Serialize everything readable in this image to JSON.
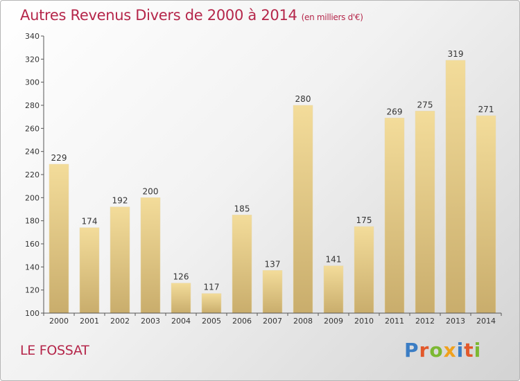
{
  "header": {
    "title": "Autres Revenus Divers de 2000 à 2014",
    "subtitle": "(en milliers d'€)"
  },
  "footer": {
    "place": "LE FOSSAT",
    "logo_text": "Proxiti"
  },
  "colors": {
    "title": "#b5264a",
    "bar_top": "#f3dc9a",
    "bar_bottom": "#c9ad6c",
    "logo": [
      "#3b7dc4",
      "#e2582b",
      "#7cb832",
      "#f0a11d",
      "#3b7dc4",
      "#e2582b",
      "#7cb832"
    ]
  },
  "chart_data": {
    "type": "bar",
    "title": "Autres Revenus Divers de 2000 à 2014",
    "categories": [
      "2000",
      "2001",
      "2002",
      "2003",
      "2004",
      "2005",
      "2006",
      "2007",
      "2008",
      "2009",
      "2010",
      "2011",
      "2012",
      "2013",
      "2014"
    ],
    "values": [
      229,
      174,
      192,
      200,
      126,
      117,
      185,
      137,
      280,
      141,
      175,
      269,
      275,
      319,
      271
    ],
    "ylim": [
      100,
      340
    ],
    "yticks": [
      100,
      120,
      140,
      160,
      180,
      200,
      220,
      240,
      260,
      280,
      300,
      320,
      340
    ],
    "grid": false,
    "data_labels": true,
    "xlabel": "",
    "ylabel": ""
  }
}
